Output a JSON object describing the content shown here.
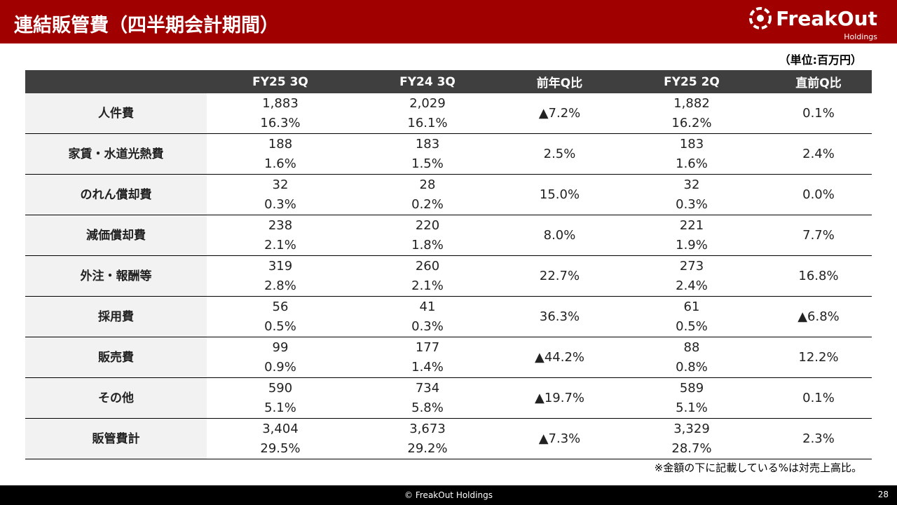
{
  "header": {
    "title": "連結販管費（四半期会計期間）",
    "logo": "FreakOut",
    "logo_sub": "Holdings"
  },
  "unit": "（単位:百万円）",
  "table": {
    "columns": [
      "",
      "FY25 3Q",
      "FY24 3Q",
      "前年Q比",
      "FY25 2Q",
      "直前Q比"
    ],
    "rows": [
      [
        "人件費",
        [
          "1,883",
          "16.3%"
        ],
        [
          "2,029",
          "16.1%"
        ],
        "▲7.2%",
        [
          "1,882",
          "16.2%"
        ],
        "0.1%"
      ],
      [
        "家賃・水道光熱費",
        [
          "188",
          "1.6%"
        ],
        [
          "183",
          "1.5%"
        ],
        "2.5%",
        [
          "183",
          "1.6%"
        ],
        "2.4%"
      ],
      [
        "のれん償却費",
        [
          "32",
          "0.3%"
        ],
        [
          "28",
          "0.2%"
        ],
        "15.0%",
        [
          "32",
          "0.3%"
        ],
        "0.0%"
      ],
      [
        "減価償却費",
        [
          "238",
          "2.1%"
        ],
        [
          "220",
          "1.8%"
        ],
        "8.0%",
        [
          "221",
          "1.9%"
        ],
        "7.7%"
      ],
      [
        "外注・報酬等",
        [
          "319",
          "2.8%"
        ],
        [
          "260",
          "2.1%"
        ],
        "22.7%",
        [
          "273",
          "2.4%"
        ],
        "16.8%"
      ],
      [
        "採用費",
        [
          "56",
          "0.5%"
        ],
        [
          "41",
          "0.3%"
        ],
        "36.3%",
        [
          "61",
          "0.5%"
        ],
        "▲6.8%"
      ],
      [
        "販売費",
        [
          "99",
          "0.9%"
        ],
        [
          "177",
          "1.4%"
        ],
        "▲44.2%",
        [
          "88",
          "0.8%"
        ],
        "12.2%"
      ],
      [
        "その他",
        [
          "590",
          "5.1%"
        ],
        [
          "734",
          "5.8%"
        ],
        "▲19.7%",
        [
          "589",
          "5.1%"
        ],
        "0.1%"
      ],
      [
        "販管費計",
        [
          "3,404",
          "29.5%"
        ],
        [
          "3,673",
          "29.2%"
        ],
        "▲7.3%",
        [
          "3,329",
          "28.7%"
        ],
        "2.3%"
      ]
    ]
  },
  "footnote": "※金額の下に記載している%は対売上高比。",
  "footer": {
    "copyright": "© FreakOut Holdings",
    "page": "28"
  }
}
